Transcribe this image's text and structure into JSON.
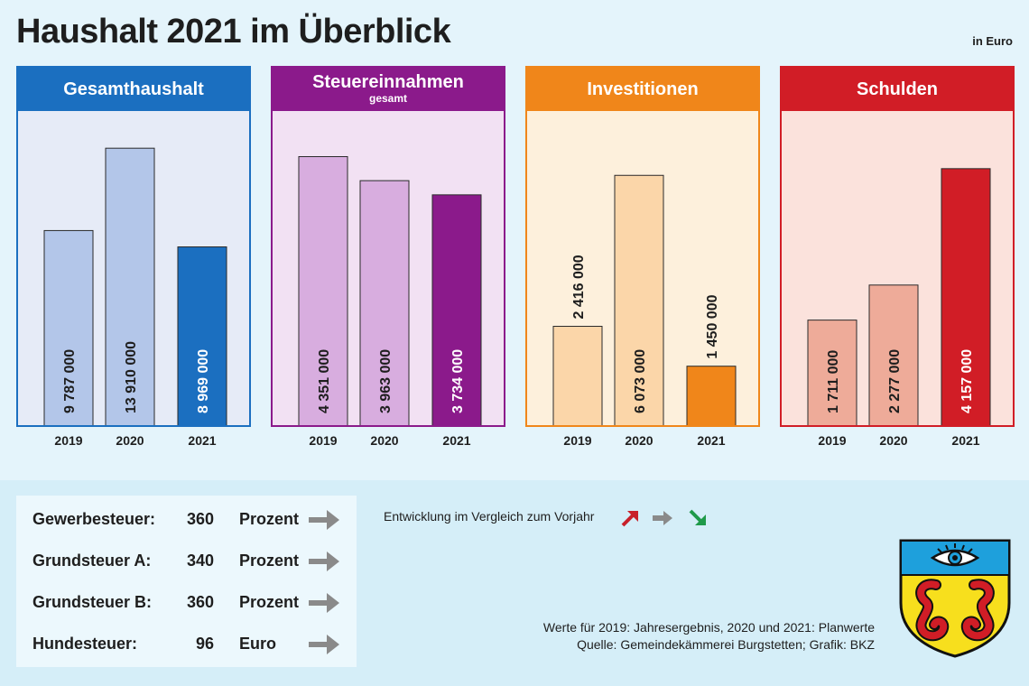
{
  "title": "Haushalt 2021 im Überblick",
  "unit_note": "in Euro",
  "colors": {
    "background": "#e4f4fb",
    "gesamthaushalt": "#1b6fc0",
    "steuereinnahmen": "#8b1a8b",
    "investitionen": "#f0861a",
    "schulden": "#d11d26",
    "arrow_up": "#c8202a",
    "arrow_same": "#8a8a8a",
    "arrow_down": "#1f9a4a"
  },
  "chart_data": [
    {
      "type": "bar",
      "title": "Gesamthaushalt",
      "subtitle": "",
      "categories": [
        "2019",
        "2020",
        "2021"
      ],
      "values": [
        9787000,
        13910000,
        8969000
      ],
      "value_labels": [
        "9 787 000",
        "13 910 000",
        "8 969 000"
      ],
      "ylim": [
        0,
        15500000
      ],
      "label_placement": "inside",
      "xlabel": "",
      "ylabel": ""
    },
    {
      "type": "bar",
      "title": "Steuereinnahmen",
      "subtitle": "gesamt",
      "categories": [
        "2019",
        "2020",
        "2021"
      ],
      "values": [
        4351000,
        3963000,
        3734000
      ],
      "value_labels": [
        "4 351 000",
        "3 963 000",
        "3 734 000"
      ],
      "ylim": [
        0,
        5000000
      ],
      "label_placement": "inside",
      "xlabel": "",
      "ylabel": ""
    },
    {
      "type": "bar",
      "title": "Investitionen",
      "subtitle": "",
      "categories": [
        "2019",
        "2020",
        "2021"
      ],
      "values": [
        2416000,
        6073000,
        1450000
      ],
      "value_labels": [
        "2 416 000",
        "6 073 000",
        "1 450 000"
      ],
      "ylim": [
        0,
        7500000
      ],
      "label_placement": [
        "above",
        "inside",
        "above"
      ],
      "xlabel": "",
      "ylabel": ""
    },
    {
      "type": "bar",
      "title": "Schulden",
      "subtitle": "",
      "categories": [
        "2019",
        "2020",
        "2021"
      ],
      "values": [
        1711000,
        2277000,
        4157000
      ],
      "value_labels": [
        "1 711 000",
        "2 277 000",
        "4 157 000"
      ],
      "ylim": [
        0,
        5000000
      ],
      "label_placement": "inside",
      "xlabel": "",
      "ylabel": ""
    }
  ],
  "taxes": [
    {
      "name": "Gewerbesteuer:",
      "value": "360",
      "unit": "Prozent",
      "trend": "same"
    },
    {
      "name": "Grundsteuer A:",
      "value": "340",
      "unit": "Prozent",
      "trend": "same"
    },
    {
      "name": "Grundsteuer B:",
      "value": "360",
      "unit": "Prozent",
      "trend": "same"
    },
    {
      "name": "Hundesteuer:",
      "value": "96",
      "unit": "Euro",
      "trend": "same"
    }
  ],
  "legend": {
    "text": "Entwicklung im Vergleich zum Vorjahr",
    "icons": [
      "arrow-up-icon",
      "arrow-right-icon",
      "arrow-down-icon"
    ]
  },
  "footnote": {
    "line1": "Werte für 2019: Jahresergebnis, 2020 und 2021: Planwerte",
    "line2": "Quelle: Gemeindekämmerei Burgstetten; Grafik: BKZ"
  }
}
